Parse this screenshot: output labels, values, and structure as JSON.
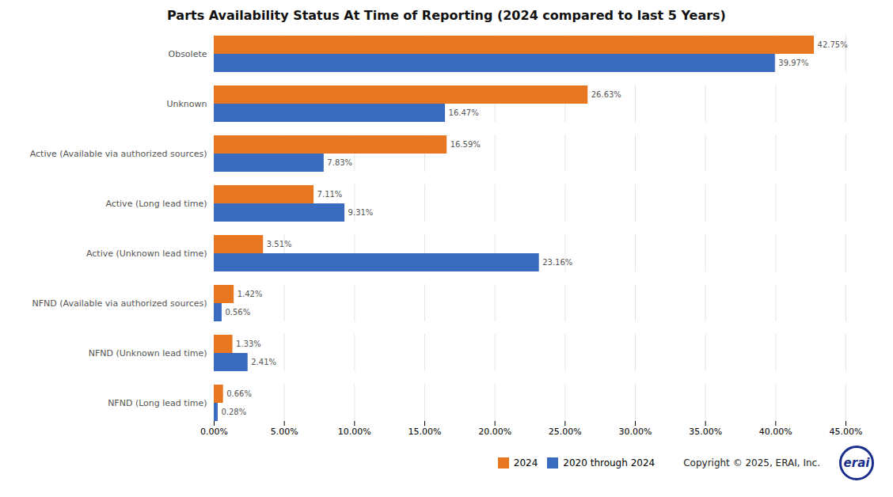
{
  "chart_data": {
    "type": "bar",
    "orientation": "horizontal",
    "title": "Parts Availability Status At Time of Reporting (2024 compared to last 5 Years)",
    "categories": [
      "Obsolete",
      "Unknown",
      "Active (Available via authorized sources)",
      "Active (Long lead time)",
      "Active (Unknown lead time)",
      "NFND (Available via authorized sources)",
      "NFND (Unknown lead time)",
      "NFND (Long lead time)"
    ],
    "series": [
      {
        "name": "2024",
        "color": "#E87722",
        "values": [
          42.75,
          26.63,
          16.59,
          7.11,
          3.51,
          1.42,
          1.33,
          0.66
        ],
        "value_labels": [
          "42.75%",
          "26.63%",
          "16.59%",
          "7.11%",
          "3.51%",
          "1.42%",
          "1.33%",
          "0.66%"
        ]
      },
      {
        "name": "2020 through 2024",
        "color": "#3A6BBF",
        "values": [
          39.97,
          16.47,
          7.83,
          9.31,
          23.16,
          0.56,
          2.41,
          0.28
        ],
        "value_labels": [
          "39.97%",
          "16.47%",
          "7.83%",
          "9.31%",
          "23.16%",
          "0.56%",
          "2.41%",
          "0.28%"
        ]
      }
    ],
    "xlim": [
      0,
      45
    ],
    "xticks": [
      {
        "value": 0,
        "label": "0.00%"
      },
      {
        "value": 5,
        "label": "5.00%"
      },
      {
        "value": 10,
        "label": "10.00%"
      },
      {
        "value": 15,
        "label": "15.00%"
      },
      {
        "value": 20,
        "label": "20.00%"
      },
      {
        "value": 25,
        "label": "25.00%"
      },
      {
        "value": 30,
        "label": "30.00%"
      },
      {
        "value": 35,
        "label": "35.00%"
      },
      {
        "value": 40,
        "label": "40.00%"
      },
      {
        "value": 45,
        "label": "45.00%"
      }
    ],
    "grid": true,
    "data_labels": true,
    "legend": "lower right",
    "annotations": [
      "Copyright © 2025, ERAI, Inc.",
      "erai"
    ]
  }
}
